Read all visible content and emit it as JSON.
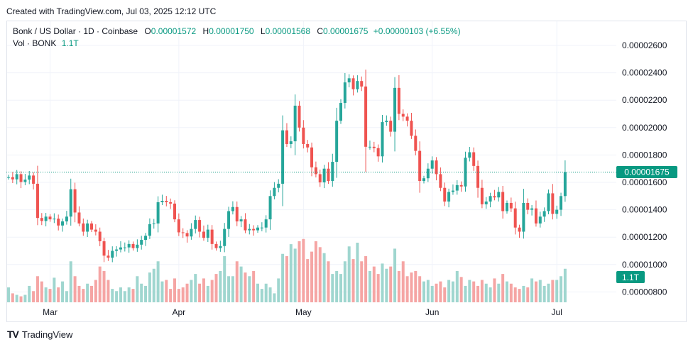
{
  "header": {
    "title": "Created with TradingView.com, Jul 03, 2025 12:12 UTC"
  },
  "legend": {
    "symbol": "Bonk / US Dollar · 1D · Coinbase",
    "o_label": "O",
    "o_value": "0.00001572",
    "h_label": "H",
    "h_value": "0.00001750",
    "l_label": "L",
    "l_value": "0.00001568",
    "c_label": "C",
    "c_value": "0.00001675",
    "change": "+0.00000103 (+6.55%)",
    "vol_label": "Vol · BONK",
    "vol_value": "1.1T"
  },
  "badges": {
    "last_price": "0.00001675",
    "volume": "1.1T"
  },
  "footer": {
    "brand": "TradingView",
    "logo_mark": "TV"
  },
  "colors": {
    "up": "#26a69a",
    "down": "#ef5350",
    "up_text": "#089981",
    "vol_up": "#9fd6cf",
    "vol_down": "#f5a5a4",
    "badge": "#089981"
  },
  "chart_data": {
    "type": "candlestick",
    "title": "Bonk / US Dollar · 1D · Coinbase",
    "y_ticks": [
      "0.00002600",
      "0.00002400",
      "0.00002200",
      "0.00002000",
      "0.00001800",
      "0.00001600",
      "0.00001400",
      "0.00001200",
      "0.00001000",
      "0.00000800"
    ],
    "y_tick_values": [
      2.6e-05,
      2.4e-05,
      2.2e-05,
      2e-05,
      1.8e-05,
      1.6e-05,
      1.4e-05,
      1.2e-05,
      1e-05,
      8e-06
    ],
    "x_ticks": [
      "Mar",
      "Apr",
      "May",
      "Jun",
      "Jul"
    ],
    "x_tick_index": [
      10,
      41,
      71,
      102,
      132
    ],
    "last_price": 1.675e-05,
    "close_e8": [
      1638,
      1622,
      1660,
      1603,
      1620,
      1650,
      1590,
      1340,
      1318,
      1350,
      1330,
      1335,
      1285,
      1315,
      1350,
      1550,
      1380,
      1300,
      1240,
      1300,
      1255,
      1240,
      1170,
      1065,
      1050,
      1100,
      1110,
      1125,
      1125,
      1150,
      1120,
      1145,
      1180,
      1210,
      1295,
      1300,
      1455,
      1465,
      1455,
      1445,
      1330,
      1235,
      1230,
      1205,
      1260,
      1325,
      1240,
      1195,
      1255,
      1150,
      1120,
      1135,
      1260,
      1390,
      1420,
      1315,
      1330,
      1250,
      1260,
      1250,
      1270,
      1270,
      1330,
      1500,
      1560,
      1590,
      1980,
      1880,
      1900,
      2160,
      2000,
      1880,
      1855,
      1710,
      1660,
      1600,
      1700,
      1610,
      1750,
      2050,
      2180,
      2330,
      2360,
      2280,
      2340,
      2300,
      1860,
      1860,
      1850,
      1790,
      2040,
      2050,
      1970,
      2290,
      2100,
      2080,
      2050,
      1940,
      1830,
      1610,
      1630,
      1700,
      1760,
      1660,
      1560,
      1460,
      1530,
      1540,
      1580,
      1570,
      1780,
      1820,
      1720,
      1560,
      1440,
      1460,
      1500,
      1490,
      1530,
      1390,
      1450,
      1410,
      1270,
      1240,
      1450,
      1400,
      1410,
      1300,
      1350,
      1390,
      1520,
      1370,
      1400,
      1500,
      1675
    ],
    "volume_rel": [
      0.2,
      0.12,
      0.1,
      0.08,
      0.1,
      0.22,
      0.15,
      0.35,
      0.28,
      0.2,
      0.18,
      0.33,
      0.2,
      0.28,
      0.15,
      0.55,
      0.35,
      0.22,
      0.18,
      0.25,
      0.22,
      0.3,
      0.48,
      0.42,
      0.3,
      0.18,
      0.15,
      0.2,
      0.15,
      0.2,
      0.18,
      0.35,
      0.25,
      0.22,
      0.4,
      0.45,
      0.55,
      0.28,
      0.3,
      0.18,
      0.32,
      0.18,
      0.2,
      0.25,
      0.3,
      0.38,
      0.25,
      0.32,
      0.22,
      0.3,
      0.38,
      0.42,
      0.62,
      0.35,
      0.35,
      0.55,
      0.48,
      0.4,
      0.35,
      0.42,
      0.25,
      0.18,
      0.25,
      0.2,
      0.12,
      0.32,
      0.65,
      0.62,
      0.78,
      0.72,
      0.82,
      0.85,
      0.58,
      0.68,
      0.82,
      0.74,
      0.66,
      0.55,
      0.38,
      0.42,
      0.38,
      0.55,
      0.75,
      0.58,
      0.8,
      0.55,
      0.62,
      0.42,
      0.48,
      0.38,
      0.52,
      0.45,
      0.48,
      0.72,
      0.42,
      0.55,
      0.35,
      0.4,
      0.42,
      0.35,
      0.28,
      0.3,
      0.22,
      0.25,
      0.28,
      0.2,
      0.3,
      0.28,
      0.42,
      0.34,
      0.22,
      0.3,
      0.28,
      0.22,
      0.3,
      0.25,
      0.2,
      0.32,
      0.25,
      0.38,
      0.28,
      0.25,
      0.2,
      0.18,
      0.22,
      0.2,
      0.32,
      0.28,
      0.3,
      0.22,
      0.25,
      0.3,
      0.3,
      0.35,
      0.45
    ]
  }
}
